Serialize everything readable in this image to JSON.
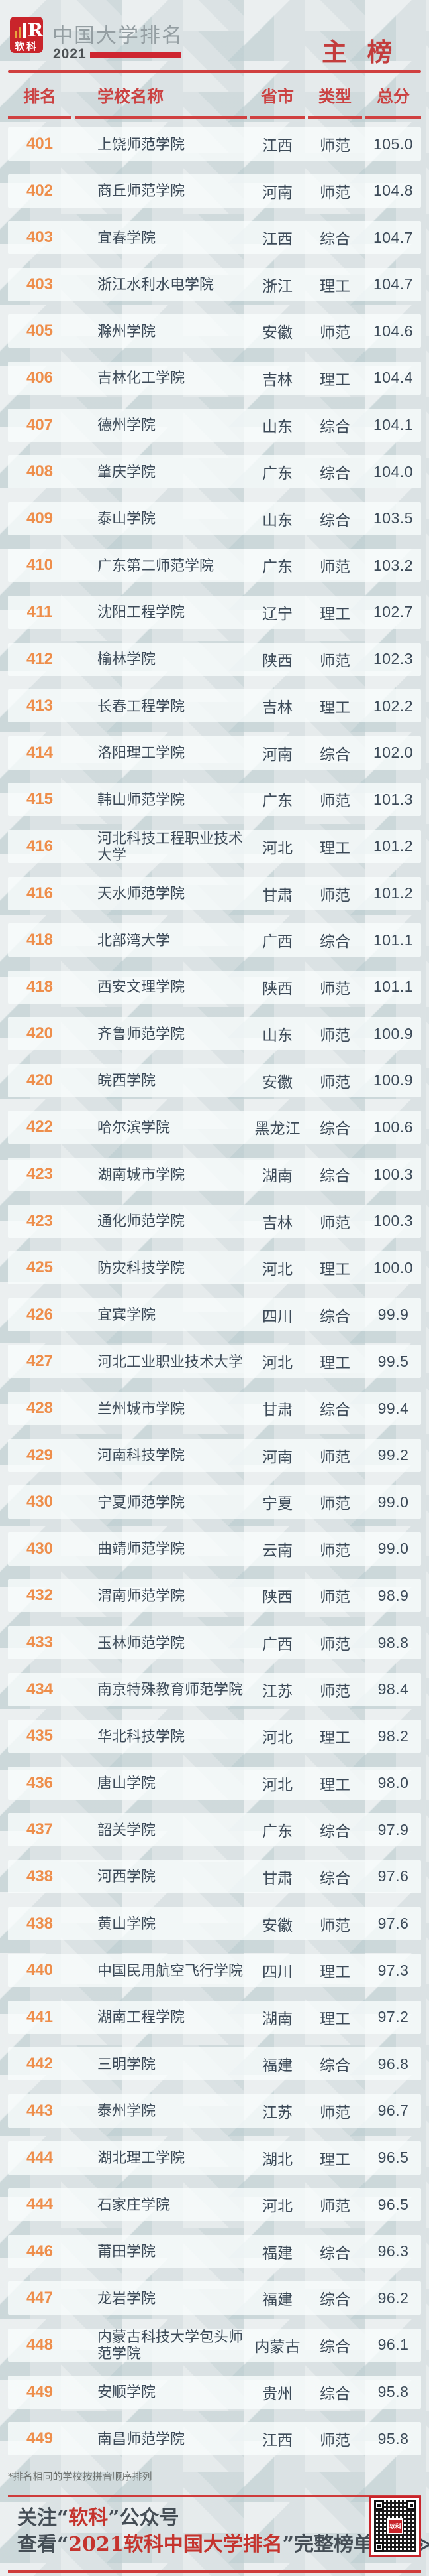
{
  "meta": {
    "brand": "软科",
    "title": "中国大学排名",
    "year": "2021",
    "board_label": "主 榜"
  },
  "table": {
    "columns": {
      "rank": "排名",
      "name": "学校名称",
      "province": "省市",
      "type": "类型",
      "score": "总分"
    },
    "rows": [
      {
        "rank": "401",
        "name": "上饶师范学院",
        "prov": "江西",
        "type": "师范",
        "score": "105.0"
      },
      {
        "rank": "402",
        "name": "商丘师范学院",
        "prov": "河南",
        "type": "师范",
        "score": "104.8"
      },
      {
        "rank": "403",
        "name": "宜春学院",
        "prov": "江西",
        "type": "综合",
        "score": "104.7"
      },
      {
        "rank": "403",
        "name": "浙江水利水电学院",
        "prov": "浙江",
        "type": "理工",
        "score": "104.7"
      },
      {
        "rank": "405",
        "name": "滁州学院",
        "prov": "安徽",
        "type": "师范",
        "score": "104.6"
      },
      {
        "rank": "406",
        "name": "吉林化工学院",
        "prov": "吉林",
        "type": "理工",
        "score": "104.4"
      },
      {
        "rank": "407",
        "name": "德州学院",
        "prov": "山东",
        "type": "综合",
        "score": "104.1"
      },
      {
        "rank": "408",
        "name": "肇庆学院",
        "prov": "广东",
        "type": "综合",
        "score": "104.0"
      },
      {
        "rank": "409",
        "name": "泰山学院",
        "prov": "山东",
        "type": "综合",
        "score": "103.5"
      },
      {
        "rank": "410",
        "name": "广东第二师范学院",
        "prov": "广东",
        "type": "师范",
        "score": "103.2"
      },
      {
        "rank": "411",
        "name": "沈阳工程学院",
        "prov": "辽宁",
        "type": "理工",
        "score": "102.7"
      },
      {
        "rank": "412",
        "name": "榆林学院",
        "prov": "陕西",
        "type": "师范",
        "score": "102.3"
      },
      {
        "rank": "413",
        "name": "长春工程学院",
        "prov": "吉林",
        "type": "理工",
        "score": "102.2"
      },
      {
        "rank": "414",
        "name": "洛阳理工学院",
        "prov": "河南",
        "type": "综合",
        "score": "102.0"
      },
      {
        "rank": "415",
        "name": "韩山师范学院",
        "prov": "广东",
        "type": "师范",
        "score": "101.3"
      },
      {
        "rank": "416",
        "name": "河北科技工程职业技术大学",
        "prov": "河北",
        "type": "理工",
        "score": "101.2"
      },
      {
        "rank": "416",
        "name": "天水师范学院",
        "prov": "甘肃",
        "type": "师范",
        "score": "101.2"
      },
      {
        "rank": "418",
        "name": "北部湾大学",
        "prov": "广西",
        "type": "综合",
        "score": "101.1"
      },
      {
        "rank": "418",
        "name": "西安文理学院",
        "prov": "陕西",
        "type": "师范",
        "score": "101.1"
      },
      {
        "rank": "420",
        "name": "齐鲁师范学院",
        "prov": "山东",
        "type": "师范",
        "score": "100.9"
      },
      {
        "rank": "420",
        "name": "皖西学院",
        "prov": "安徽",
        "type": "师范",
        "score": "100.9"
      },
      {
        "rank": "422",
        "name": "哈尔滨学院",
        "prov": "黑龙江",
        "type": "综合",
        "score": "100.6"
      },
      {
        "rank": "423",
        "name": "湖南城市学院",
        "prov": "湖南",
        "type": "综合",
        "score": "100.3"
      },
      {
        "rank": "423",
        "name": "通化师范学院",
        "prov": "吉林",
        "type": "师范",
        "score": "100.3"
      },
      {
        "rank": "425",
        "name": "防灾科技学院",
        "prov": "河北",
        "type": "理工",
        "score": "100.0"
      },
      {
        "rank": "426",
        "name": "宜宾学院",
        "prov": "四川",
        "type": "综合",
        "score": "99.9"
      },
      {
        "rank": "427",
        "name": "河北工业职业技术大学",
        "prov": "河北",
        "type": "理工",
        "score": "99.5"
      },
      {
        "rank": "428",
        "name": "兰州城市学院",
        "prov": "甘肃",
        "type": "综合",
        "score": "99.4"
      },
      {
        "rank": "429",
        "name": "河南科技学院",
        "prov": "河南",
        "type": "师范",
        "score": "99.2"
      },
      {
        "rank": "430",
        "name": "宁夏师范学院",
        "prov": "宁夏",
        "type": "师范",
        "score": "99.0"
      },
      {
        "rank": "430",
        "name": "曲靖师范学院",
        "prov": "云南",
        "type": "师范",
        "score": "99.0"
      },
      {
        "rank": "432",
        "name": "渭南师范学院",
        "prov": "陕西",
        "type": "师范",
        "score": "98.9"
      },
      {
        "rank": "433",
        "name": "玉林师范学院",
        "prov": "广西",
        "type": "师范",
        "score": "98.8"
      },
      {
        "rank": "434",
        "name": "南京特殊教育师范学院",
        "prov": "江苏",
        "type": "师范",
        "score": "98.4"
      },
      {
        "rank": "435",
        "name": "华北科技学院",
        "prov": "河北",
        "type": "理工",
        "score": "98.2"
      },
      {
        "rank": "436",
        "name": "唐山学院",
        "prov": "河北",
        "type": "理工",
        "score": "98.0"
      },
      {
        "rank": "437",
        "name": "韶关学院",
        "prov": "广东",
        "type": "综合",
        "score": "97.9"
      },
      {
        "rank": "438",
        "name": "河西学院",
        "prov": "甘肃",
        "type": "综合",
        "score": "97.6"
      },
      {
        "rank": "438",
        "name": "黄山学院",
        "prov": "安徽",
        "type": "师范",
        "score": "97.6"
      },
      {
        "rank": "440",
        "name": "中国民用航空飞行学院",
        "prov": "四川",
        "type": "理工",
        "score": "97.3"
      },
      {
        "rank": "441",
        "name": "湖南工程学院",
        "prov": "湖南",
        "type": "理工",
        "score": "97.2"
      },
      {
        "rank": "442",
        "name": "三明学院",
        "prov": "福建",
        "type": "综合",
        "score": "96.8"
      },
      {
        "rank": "443",
        "name": "泰州学院",
        "prov": "江苏",
        "type": "师范",
        "score": "96.7"
      },
      {
        "rank": "444",
        "name": "湖北理工学院",
        "prov": "湖北",
        "type": "理工",
        "score": "96.5"
      },
      {
        "rank": "444",
        "name": "石家庄学院",
        "prov": "河北",
        "type": "师范",
        "score": "96.5"
      },
      {
        "rank": "446",
        "name": "莆田学院",
        "prov": "福建",
        "type": "综合",
        "score": "96.3"
      },
      {
        "rank": "447",
        "name": "龙岩学院",
        "prov": "福建",
        "type": "综合",
        "score": "96.2"
      },
      {
        "rank": "448",
        "name": "内蒙古科技大学包头师范学院",
        "prov": "内蒙古",
        "type": "综合",
        "score": "96.1"
      },
      {
        "rank": "449",
        "name": "安顺学院",
        "prov": "贵州",
        "type": "综合",
        "score": "95.8"
      },
      {
        "rank": "449",
        "name": "南昌师范学院",
        "prov": "江西",
        "type": "师范",
        "score": "95.8"
      }
    ]
  },
  "note": "*排名相同的学校按拼音顺序排列",
  "footer": {
    "line1": {
      "pre": "关注“",
      "highlight": "软科",
      "post": "”公众号"
    },
    "line2": {
      "pre": "查看“",
      "highlight": "2021软科中国大学排名",
      "post": "”完整榜单"
    },
    "chevrons": "≫≫≫",
    "qr_center_label": "软科"
  },
  "colors": {
    "accent_red": "#c9242b",
    "line_red": "#d04040",
    "header_label_red": "#cb4343",
    "rank_orange": "#ee8e4b",
    "body_text": "#3d4b59",
    "title_gray": "#949ea2",
    "background": "#dbe2e4"
  }
}
